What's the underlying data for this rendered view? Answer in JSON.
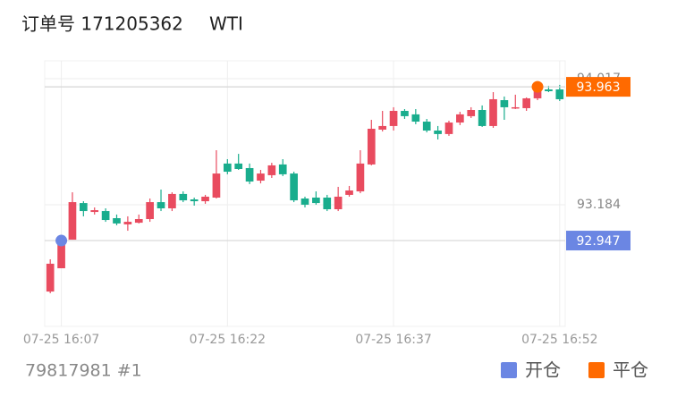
{
  "header": {
    "order": "订单号 171205362",
    "symbol": "WTI"
  },
  "chart_data": {
    "type": "candlestick",
    "x": [
      -1,
      0,
      1,
      2,
      3,
      4,
      5,
      6,
      7,
      8,
      9,
      10,
      11,
      12,
      13,
      14,
      15,
      16,
      17,
      18,
      19,
      20,
      21,
      22,
      23,
      24,
      25,
      26,
      27,
      28,
      29,
      30,
      31,
      32,
      33,
      34,
      35,
      36,
      37,
      38,
      39,
      40,
      41,
      42,
      43,
      44,
      45
    ],
    "open": [
      92.61,
      92.764,
      92.953,
      93.195,
      93.136,
      93.142,
      93.095,
      93.054,
      93.065,
      93.089,
      93.201,
      93.16,
      93.255,
      93.219,
      93.207,
      93.231,
      93.456,
      93.456,
      93.426,
      93.343,
      93.379,
      93.45,
      93.39,
      93.225,
      93.231,
      93.231,
      93.154,
      93.249,
      93.272,
      93.45,
      93.68,
      93.704,
      93.804,
      93.781,
      93.733,
      93.674,
      93.651,
      93.727,
      93.769,
      93.81,
      93.704,
      93.875,
      93.822,
      93.822,
      93.887,
      93.946,
      93.946
    ],
    "high": [
      92.823,
      92.971,
      93.266,
      93.207,
      93.166,
      93.16,
      93.119,
      93.107,
      93.119,
      93.225,
      93.284,
      93.266,
      93.272,
      93.231,
      93.249,
      93.544,
      93.485,
      93.52,
      93.456,
      93.414,
      93.461,
      93.485,
      93.402,
      93.237,
      93.272,
      93.249,
      93.302,
      93.308,
      93.544,
      93.745,
      93.804,
      93.828,
      93.816,
      93.816,
      93.751,
      93.704,
      93.739,
      93.798,
      93.828,
      93.84,
      93.928,
      93.899,
      93.911,
      93.893,
      93.97,
      93.97,
      93.976
    ],
    "low": [
      92.599,
      92.764,
      92.953,
      93.107,
      93.119,
      93.071,
      93.048,
      93.012,
      93.06,
      93.071,
      93.142,
      93.142,
      93.201,
      93.178,
      93.19,
      93.225,
      93.385,
      93.414,
      93.32,
      93.325,
      93.361,
      93.373,
      93.201,
      93.166,
      93.184,
      93.142,
      93.142,
      93.237,
      93.26,
      93.444,
      93.668,
      93.674,
      93.751,
      93.716,
      93.662,
      93.615,
      93.639,
      93.71,
      93.757,
      93.698,
      93.692,
      93.745,
      93.816,
      93.804,
      93.875,
      93.928,
      93.869
    ],
    "close": [
      92.794,
      92.941,
      93.201,
      93.142,
      93.148,
      93.083,
      93.06,
      93.071,
      93.089,
      93.201,
      93.16,
      93.255,
      93.213,
      93.207,
      93.237,
      93.39,
      93.402,
      93.42,
      93.337,
      93.39,
      93.444,
      93.385,
      93.213,
      93.184,
      93.195,
      93.154,
      93.237,
      93.278,
      93.456,
      93.686,
      93.704,
      93.804,
      93.769,
      93.733,
      93.674,
      93.651,
      93.727,
      93.781,
      93.81,
      93.704,
      93.881,
      93.828,
      93.828,
      93.887,
      93.946,
      93.934,
      93.881
    ],
    "up_color": "#e94b5f",
    "down_color": "#19ad8d",
    "xlim": [
      -1.5,
      45.5
    ],
    "xticks": [
      {
        "value": 0,
        "label": "07-25 16:07"
      },
      {
        "value": 15,
        "label": "07-25 16:22"
      },
      {
        "value": 30,
        "label": "07-25 16:37"
      },
      {
        "value": 45,
        "label": "07-25 16:52"
      }
    ],
    "ylim": [
      92.38,
      94.135
    ],
    "yticks": [
      93.184,
      94.017
    ],
    "grid": true,
    "series": [
      {
        "name": "开仓",
        "color": "#6b86e3",
        "x": [
          0
        ],
        "values": [
          92.947
        ]
      },
      {
        "name": "平仓",
        "color": "#ff6a00",
        "x": [
          43
        ],
        "values": [
          93.963
        ]
      }
    ]
  },
  "footer": {
    "account": "79817981 #1"
  }
}
